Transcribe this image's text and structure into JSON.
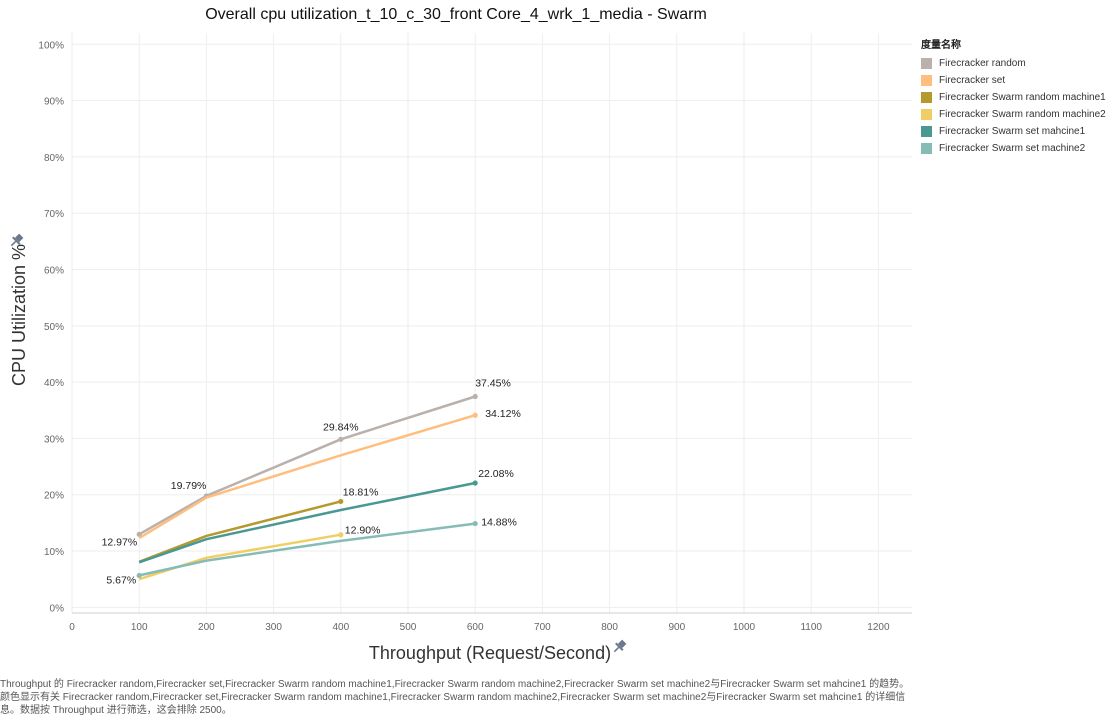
{
  "chart_data": {
    "type": "line",
    "title": "Overall cpu utilization_t_10_c_30_front Core_4_wrk_1_media - Swarm",
    "xlabel": "Throughput (Request/Second)",
    "ylabel": "CPU Utilization %",
    "xlim": [
      0,
      1250
    ],
    "ylim": [
      -1,
      102
    ],
    "x_ticks": [
      0,
      100,
      200,
      300,
      400,
      500,
      600,
      700,
      800,
      900,
      1000,
      1100,
      1200
    ],
    "y_ticks": [
      0,
      10,
      20,
      30,
      40,
      50,
      60,
      70,
      80,
      90,
      100
    ],
    "y_tick_labels": [
      "0%",
      "10%",
      "20%",
      "30%",
      "40%",
      "50%",
      "60%",
      "70%",
      "80%",
      "90%",
      "100%"
    ],
    "grid": true,
    "legend_title": "度量名称",
    "legend_position": "right",
    "series": [
      {
        "name": "Firecracker random",
        "color": "#bab0ac",
        "points": [
          {
            "x": 100,
            "y": 12.97,
            "label": "12.97%"
          },
          {
            "x": 200,
            "y": 19.79,
            "label": "19.79%"
          },
          {
            "x": 400,
            "y": 29.84,
            "label": "29.84%"
          },
          {
            "x": 600,
            "y": 37.45,
            "label": "37.45%"
          }
        ]
      },
      {
        "name": "Firecracker set",
        "color": "#ffbe7d",
        "points": [
          {
            "x": 100,
            "y": 12.3
          },
          {
            "x": 200,
            "y": 19.5
          },
          {
            "x": 400,
            "y": 27.0
          },
          {
            "x": 600,
            "y": 34.12,
            "label": "34.12%"
          }
        ]
      },
      {
        "name": "Firecracker Swarm random machine1",
        "color": "#b6992d",
        "points": [
          {
            "x": 100,
            "y": 8.1
          },
          {
            "x": 200,
            "y": 12.7
          },
          {
            "x": 400,
            "y": 18.81,
            "label": "18.81%"
          }
        ]
      },
      {
        "name": "Firecracker Swarm random machine2",
        "color": "#f1ce63",
        "points": [
          {
            "x": 100,
            "y": 5.0
          },
          {
            "x": 200,
            "y": 8.8
          },
          {
            "x": 400,
            "y": 12.9,
            "label": "12.90%"
          }
        ]
      },
      {
        "name": "Firecracker Swarm set mahcine1",
        "color": "#499894",
        "points": [
          {
            "x": 100,
            "y": 8.0
          },
          {
            "x": 200,
            "y": 12.1
          },
          {
            "x": 400,
            "y": 17.3
          },
          {
            "x": 600,
            "y": 22.08,
            "label": "22.08%"
          }
        ]
      },
      {
        "name": "Firecracker Swarm set machine2",
        "color": "#86bcb6",
        "points": [
          {
            "x": 100,
            "y": 5.67,
            "label": "5.67%"
          },
          {
            "x": 200,
            "y": 8.3
          },
          {
            "x": 400,
            "y": 11.8
          },
          {
            "x": 600,
            "y": 14.88,
            "label": "14.88%"
          }
        ]
      }
    ]
  },
  "caption": "Throughput 的 Firecracker random,Firecracker set,Firecracker Swarm random machine1,Firecracker Swarm random machine2,Firecracker Swarm set machine2与Firecracker Swarm set mahcine1 的趋势。 颜色显示有关 Firecracker random,Firecracker set,Firecracker Swarm random machine1,Firecracker Swarm random machine2,Firecracker Swarm set machine2与Firecracker Swarm set mahcine1 的详细信息。数据按 Throughput 进行筛选，这会排除 2500。",
  "icons": {
    "axis_pin": "pin-icon"
  }
}
